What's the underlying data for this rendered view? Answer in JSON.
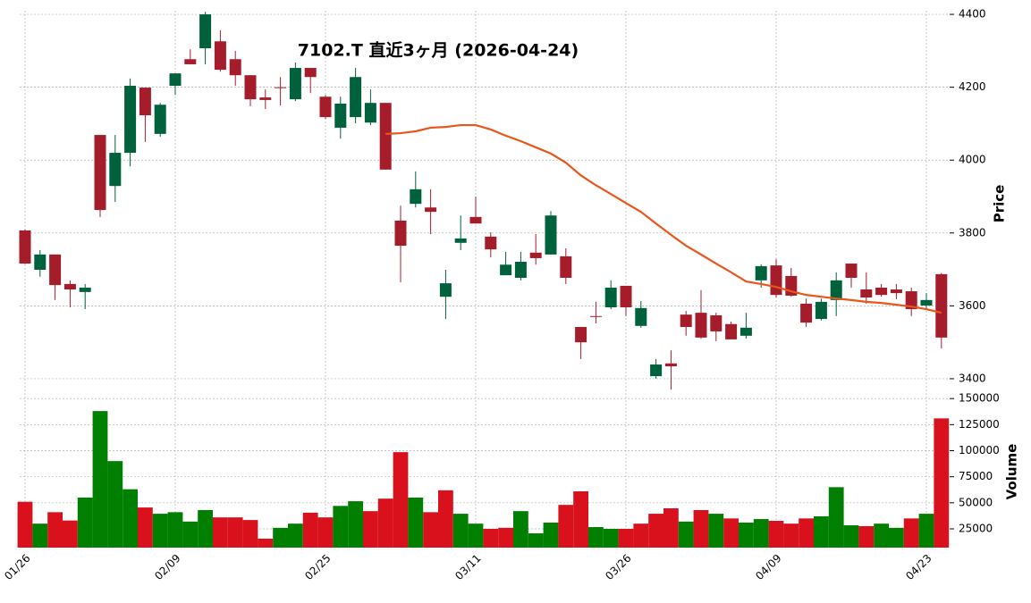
{
  "chart_data": {
    "type": "candlestick",
    "title": "7102.T  直近3ヶ月  (2026-04-24)",
    "ylabel": "Price",
    "volume_label": "Volume",
    "categories": [
      "01/26",
      null,
      null,
      null,
      null,
      null,
      null,
      null,
      null,
      null,
      "02/09",
      null,
      null,
      null,
      null,
      null,
      null,
      null,
      null,
      null,
      "02/25",
      null,
      null,
      null,
      null,
      null,
      null,
      null,
      null,
      null,
      "03/11",
      null,
      null,
      null,
      null,
      null,
      null,
      null,
      null,
      null,
      "03/26",
      null,
      null,
      null,
      null,
      null,
      null,
      null,
      null,
      null,
      "04/09",
      null,
      null,
      null,
      null,
      null,
      null,
      null,
      null,
      null,
      "04/23",
      null
    ],
    "open": [
      3807,
      3699,
      3741,
      3660,
      3638,
      4069,
      3929,
      4020,
      4199,
      4072,
      4204,
      4277,
      4307,
      4326,
      4277,
      4233,
      4172,
      4200,
      4167,
      4253,
      4174,
      4089,
      4118,
      4103,
      4157,
      3834,
      3880,
      3870,
      3625,
      3773,
      3844,
      3790,
      3684,
      3677,
      3746,
      3741,
      3736,
      3542,
      3572,
      3596,
      3655,
      3545,
      3407,
      3442,
      3576,
      3581,
      3574,
      3550,
      3518,
      3670,
      3711,
      3682,
      3606,
      3564,
      3616,
      3716,
      3645,
      3650,
      3645,
      3640,
      3601,
      3687
    ],
    "high": [
      3810,
      3753,
      3741,
      3670,
      3660,
      4069,
      4069,
      4224,
      4199,
      4157,
      4238,
      4304,
      4407,
      4356,
      4300,
      4233,
      4194,
      4228,
      4268,
      4253,
      4179,
      4174,
      4253,
      4194,
      4157,
      3875,
      3969,
      3920,
      3699,
      3848,
      3900,
      3802,
      3748,
      3748,
      3797,
      3860,
      3758,
      3542,
      3611,
      3670,
      3655,
      3613,
      3454,
      3478,
      3586,
      3643,
      3581,
      3557,
      3581,
      3714,
      3728,
      3704,
      3620,
      3620,
      3692,
      3716,
      3692,
      3660,
      3660,
      3650,
      3635,
      3690
    ],
    "low": [
      3715,
      3680,
      3616,
      3596,
      3591,
      3844,
      3885,
      3983,
      4050,
      4064,
      4179,
      4263,
      4263,
      4243,
      4204,
      4148,
      4140,
      4150,
      4162,
      4184,
      4113,
      4059,
      4101,
      4096,
      3974,
      3665,
      3870,
      3797,
      3564,
      3753,
      3826,
      3733,
      3684,
      3670,
      3713,
      3741,
      3660,
      3454,
      3552,
      3591,
      3572,
      3540,
      3400,
      3370,
      3518,
      3510,
      3503,
      3508,
      3510,
      3650,
      3623,
      3625,
      3542,
      3560,
      3572,
      3650,
      3606,
      3625,
      3618,
      3572,
      3594,
      3483
    ],
    "close": [
      3716,
      3741,
      3657,
      3645,
      3650,
      3863,
      4020,
      4204,
      4123,
      4152,
      4238,
      4263,
      4400,
      4248,
      4233,
      4167,
      4165,
      4199,
      4253,
      4228,
      4118,
      4155,
      4228,
      4157,
      3974,
      3765,
      3920,
      3858,
      3662,
      3785,
      3826,
      3755,
      3713,
      3721,
      3731,
      3848,
      3677,
      3500,
      3571,
      3650,
      3596,
      3594,
      3439,
      3434,
      3542,
      3513,
      3530,
      3508,
      3540,
      3709,
      3630,
      3628,
      3554,
      3611,
      3670,
      3677,
      3623,
      3630,
      3635,
      3591,
      3616,
      3513
    ],
    "volume": [
      51000,
      30000,
      41000,
      33000,
      55000,
      138000,
      90000,
      63000,
      45500,
      39500,
      41000,
      32000,
      43000,
      36000,
      36000,
      33500,
      15600,
      26000,
      30000,
      40500,
      36000,
      47000,
      51500,
      42000,
      54000,
      98600,
      55000,
      41000,
      62000,
      39500,
      30000,
      25000,
      26000,
      42000,
      20700,
      31000,
      48000,
      61000,
      26700,
      25000,
      25000,
      30000,
      39500,
      44700,
      32000,
      43000,
      39500,
      35000,
      31000,
      34400,
      32700,
      30000,
      35000,
      37000,
      65000,
      28400,
      27600,
      30000,
      26000,
      35000,
      39500,
      131000
    ],
    "ma": {
      "color": "#e8561a",
      "values": [
        null,
        null,
        null,
        null,
        null,
        null,
        null,
        null,
        null,
        null,
        null,
        null,
        null,
        null,
        null,
        null,
        null,
        null,
        null,
        null,
        null,
        null,
        null,
        null,
        4072,
        4074,
        4079,
        4089,
        4091,
        4096,
        4096,
        4084,
        4067,
        4052,
        4035,
        4018,
        3993,
        3958,
        3931,
        3907,
        3882,
        3858,
        3826,
        3795,
        3765,
        3741,
        3716,
        3692,
        3667,
        3660,
        3652,
        3640,
        3630,
        3625,
        3620,
        3616,
        3611,
        3608,
        3603,
        3598,
        3591,
        3581
      ]
    },
    "up_color": "#00613d",
    "down_color": "#a51d2b",
    "volume_up_color": "#007f00",
    "volume_down_color": "#d8111d",
    "ylim": [
      3368,
      4410
    ],
    "yticks": [
      3400,
      3600,
      3800,
      4000,
      4200,
      4400
    ],
    "volume_ylim": [
      7000,
      157000
    ],
    "volume_ticks": [
      25000,
      50000,
      75000,
      100000,
      125000,
      150000
    ],
    "grid": true
  }
}
